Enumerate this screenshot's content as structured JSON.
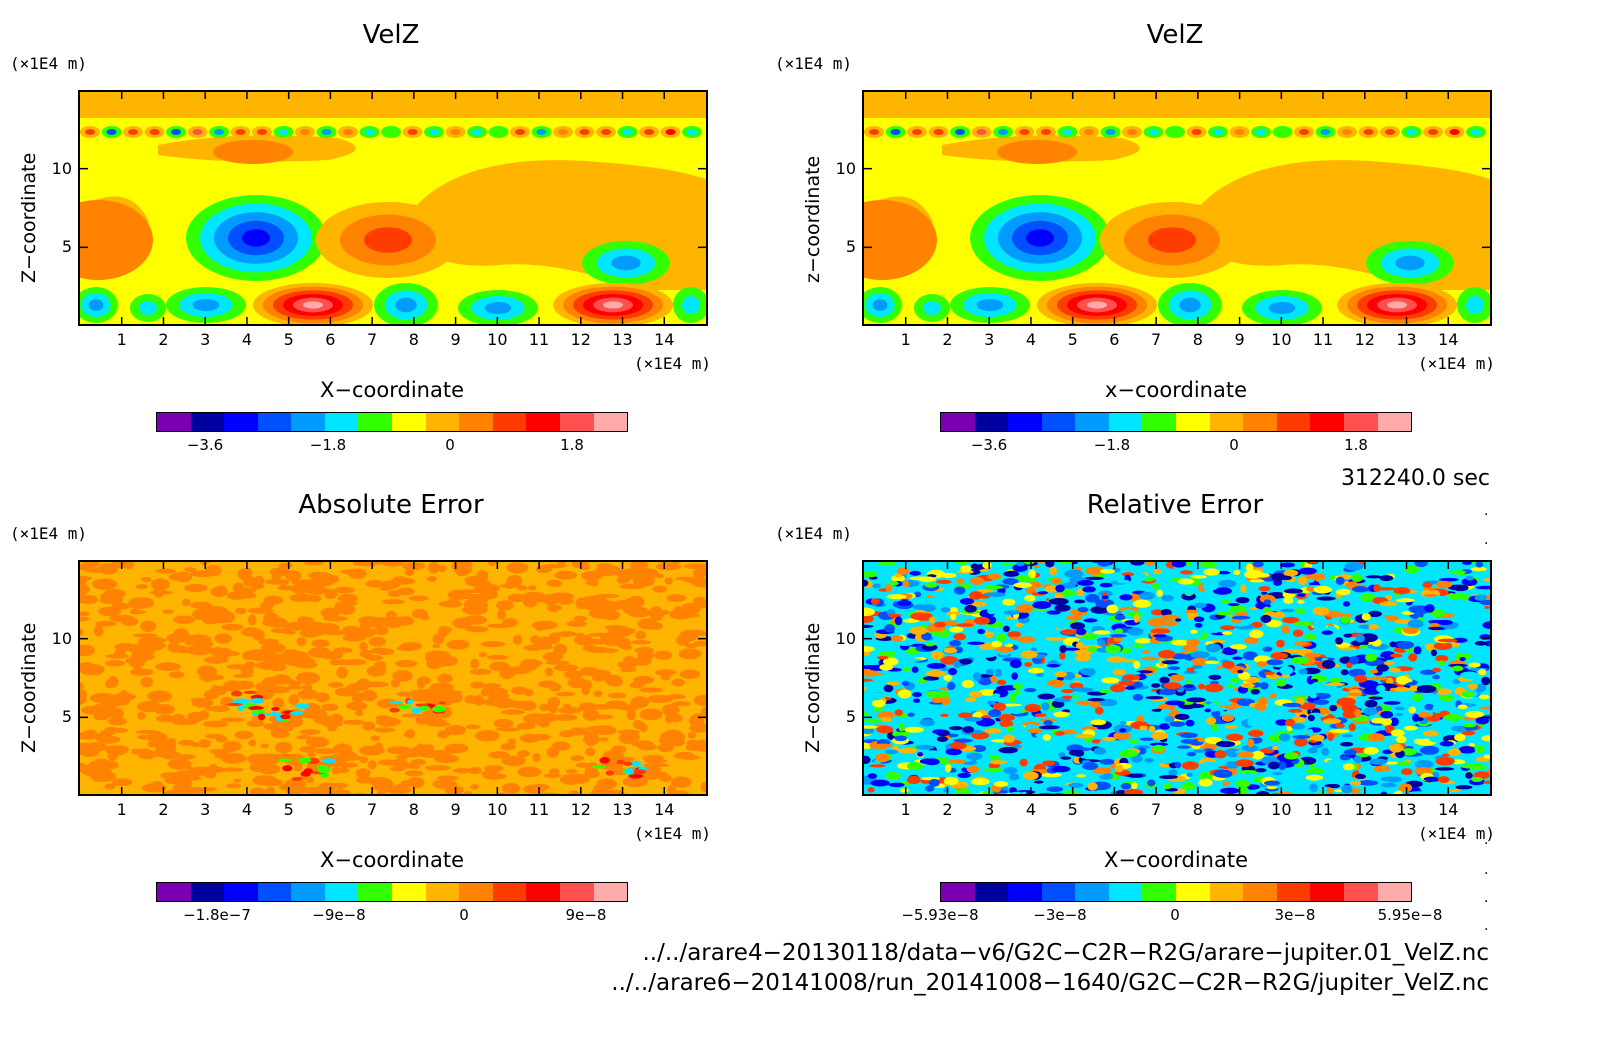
{
  "panels": [
    {
      "title": "VelZ",
      "xlabel": "X−coordinate",
      "ylabel": "Z−coordinate",
      "unit_y": "(×1E4 m)",
      "unit_x": "(×1E4 m)",
      "colorbar_ticks": [
        "−3.6",
        "−1.8",
        "0",
        "1.8"
      ],
      "kind": "velz"
    },
    {
      "title": "VelZ",
      "xlabel": "x−coordinate",
      "ylabel": "z−coordinate",
      "unit_y": "(×1E4 m)",
      "unit_x": "(×1E4 m)",
      "colorbar_ticks": [
        "−3.6",
        "−1.8",
        "0",
        "1.8"
      ],
      "kind": "velz"
    },
    {
      "title": "Absolute Error",
      "xlabel": "X−coordinate",
      "ylabel": "Z−coordinate",
      "unit_y": "(×1E4 m)",
      "unit_x": "(×1E4 m)",
      "colorbar_ticks": [
        "−1.8e−7",
        "−9e−8",
        "0",
        "9e−8"
      ],
      "kind": "abs"
    },
    {
      "title": "Relative Error",
      "xlabel": "X−coordinate",
      "ylabel": "Z−coordinate",
      "unit_y": "(×1E4 m)",
      "unit_x": "(×1E4 m)",
      "colorbar_ticks": [
        "−5.93e−8",
        "−3e−8",
        "0",
        "3e−8",
        "5.95e−8"
      ],
      "kind": "rel"
    }
  ],
  "x_ticks": [
    "1",
    "2",
    "3",
    "4",
    "5",
    "6",
    "7",
    "8",
    "9",
    "10",
    "11",
    "12",
    "13",
    "14"
  ],
  "y_ticks": [
    "5",
    "10"
  ],
  "time_label": "312240.0 sec",
  "footer": {
    "line1": "../../arare4−20130118/data−v6/G2C−C2R−R2G/arare−jupiter.01_VelZ.nc",
    "line2": "../../arare6−20141008/run_20141008−1640/G2C−C2R−R2G/jupiter_VelZ.nc"
  },
  "colors": {
    "scale": [
      "#7a00b4",
      "#0000a0",
      "#0000ff",
      "#0050ff",
      "#009bff",
      "#00e6ff",
      "#32ff00",
      "#ffff00",
      "#ffb400",
      "#ff8200",
      "#ff3c00",
      "#ff0000",
      "#ff5050",
      "#ffaaaa"
    ]
  },
  "chart_data": [
    {
      "type": "heatmap",
      "title": "VelZ",
      "xlabel": "X−coordinate",
      "ylabel": "Z−coordinate",
      "xlim": [
        0,
        15
      ],
      "ylim": [
        0,
        15
      ],
      "colorbar_ticks": [
        -3.6,
        -1.8,
        0,
        1.8
      ]
    },
    {
      "type": "heatmap",
      "title": "VelZ",
      "xlabel": "x−coordinate",
      "ylabel": "z−coordinate",
      "xlim": [
        0,
        15
      ],
      "ylim": [
        0,
        15
      ],
      "colorbar_ticks": [
        -3.6,
        -1.8,
        0,
        1.8
      ]
    },
    {
      "type": "heatmap",
      "title": "Absolute Error",
      "xlabel": "X−coordinate",
      "ylabel": "Z−coordinate",
      "xlim": [
        0,
        15
      ],
      "ylim": [
        0,
        15
      ],
      "colorbar_ticks": [
        -1.8e-07,
        -9e-08,
        0,
        9e-08
      ]
    },
    {
      "type": "heatmap",
      "title": "Relative Error",
      "xlabel": "X−coordinate",
      "ylabel": "Z−coordinate",
      "xlim": [
        0,
        15
      ],
      "ylim": [
        0,
        15
      ],
      "colorbar_ticks": [
        -5.93e-08,
        -3e-08,
        0,
        3e-08,
        5.95e-08
      ]
    }
  ]
}
